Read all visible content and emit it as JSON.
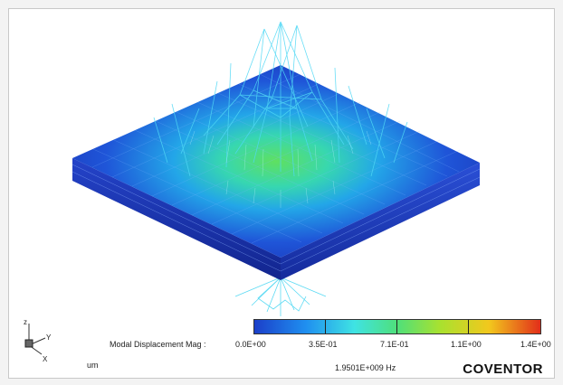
{
  "legend": {
    "title": "Modal Displacement Mag :",
    "tick_labels": [
      "0.0E+00",
      "3.5E-01",
      "7.1E-01",
      "1.1E+00",
      "1.4E+00"
    ],
    "colors": [
      "#1b3fc9",
      "#1f8ff0",
      "#3fe3e3",
      "#4fe07a",
      "#a9e12f",
      "#f2c81d",
      "#e22e1a"
    ]
  },
  "units": "um",
  "frequency": "1.9501E+009 Hz",
  "brand": "COVENTOR",
  "axes": {
    "z": "z",
    "y": "Y",
    "x": "X"
  }
}
